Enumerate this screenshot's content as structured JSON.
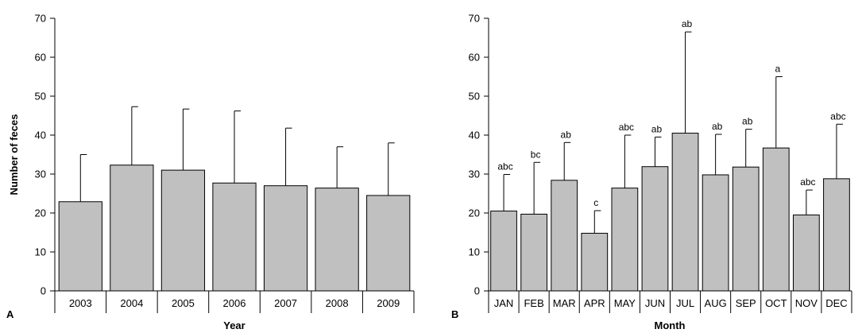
{
  "chart_data": [
    {
      "type": "bar",
      "panel_label": "A",
      "xlabel": "Year",
      "ylabel": "Number of feces",
      "ylim": [
        0,
        70
      ],
      "yticks": [
        0,
        10,
        20,
        30,
        40,
        50,
        60,
        70
      ],
      "categories": [
        "2003",
        "2004",
        "2005",
        "2006",
        "2007",
        "2008",
        "2009"
      ],
      "values": [
        22.9,
        32.3,
        31.0,
        27.7,
        27.0,
        26.4,
        24.5
      ],
      "error_upper": [
        35.0,
        47.3,
        46.7,
        46.2,
        41.8,
        37.0,
        38.0
      ],
      "annotations": []
    },
    {
      "type": "bar",
      "panel_label": "B",
      "xlabel": "Month",
      "ylabel": "",
      "ylim": [
        0,
        70
      ],
      "yticks": [
        0,
        10,
        20,
        30,
        40,
        50,
        60,
        70
      ],
      "categories": [
        "JAN",
        "FEB",
        "MAR",
        "APR",
        "MAY",
        "JUN",
        "JUL",
        "AUG",
        "SEP",
        "OCT",
        "NOV",
        "DEC"
      ],
      "values": [
        20.5,
        19.7,
        28.4,
        14.8,
        26.4,
        31.9,
        40.5,
        29.8,
        31.8,
        36.7,
        19.5,
        28.8
      ],
      "error_upper": [
        29.9,
        33.0,
        38.1,
        20.6,
        40.0,
        39.5,
        66.5,
        40.2,
        41.5,
        55.0,
        25.9,
        42.8
      ],
      "annotations": [
        "abc",
        "bc",
        "ab",
        "c",
        "abc",
        "ab",
        "ab",
        "ab",
        "ab",
        "a",
        "abc",
        "abc"
      ]
    }
  ]
}
